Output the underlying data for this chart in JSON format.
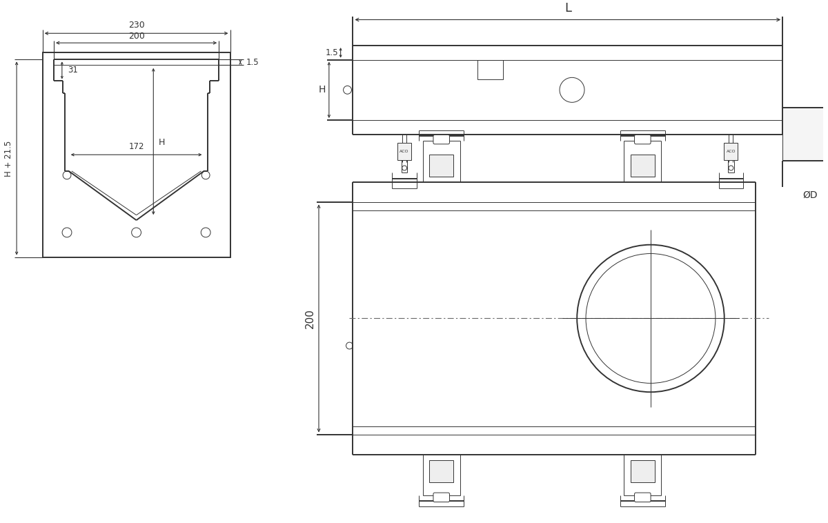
{
  "bg_color": "#ffffff",
  "lc": "#333333",
  "lw_main": 1.4,
  "lw_thin": 0.7,
  "lw_dim": 0.8,
  "labels": {
    "dim_230": "230",
    "dim_200_cs": "200",
    "dim_172": "172",
    "dim_31": "31",
    "dim_H": "H",
    "dim_H21": "H + 21.5",
    "dim_1_5": "1.5",
    "dim_L": "L",
    "dim_OD": "ØD",
    "dim_200_fv": "200"
  }
}
